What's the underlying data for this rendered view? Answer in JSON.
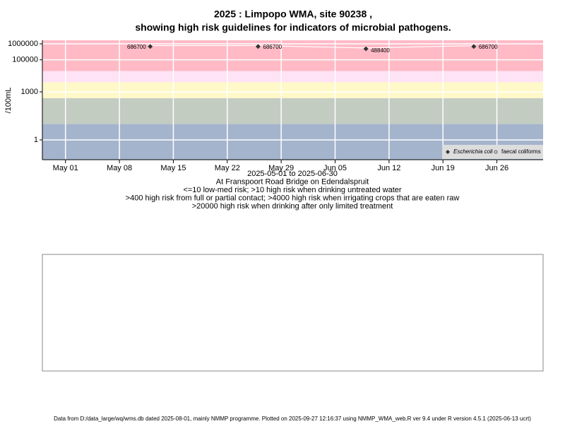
{
  "chart_data": {
    "type": "scatter",
    "title": "2025 : Limpopo WMA, site 90238 ,",
    "subtitle": "showing high risk guidelines for indicators of microbial pathogens.",
    "y_label": "/100mL",
    "notes": [
      "2025-05-01 to 2025-06-30",
      "At Franspoort Road Bridge on Edendalspruit",
      "<=10 low-med risk; >10 high risk when drinking untreated water",
      ">400 high risk from full or partial contact; >4000 high risk when irrigating crops that are eaten raw",
      ">20000 high risk when drinking after only limited treatment"
    ],
    "x": [
      "May 12",
      "May 26",
      "Jun 09",
      "Jun 23"
    ],
    "series": [
      {
        "name": "Escherichia coli",
        "color": "#333333",
        "values": [
          686700,
          686700,
          488400,
          686700
        ]
      },
      {
        "name": "faecal coliforms",
        "color": "#ffffff",
        "values": [
          770000,
          770000,
          550000,
          770000
        ]
      }
    ],
    "xlim": [
      "Apr 28",
      "Jul 02"
    ],
    "xticks": [
      "May 01",
      "May 08",
      "May 15",
      "May 22",
      "May 29",
      "Jun 05",
      "Jun 12",
      "Jun 19",
      "Jun 26"
    ],
    "ylim": [
      0.058,
      1660000
    ],
    "log_y": true,
    "yticks": [
      1,
      1000,
      100000,
      1000000
    ],
    "thresholds": [
      10,
      400,
      4000,
      20000
    ],
    "band_colors": [
      "#a5b4cd",
      "#c3ccc1",
      "#fff8c9",
      "#fde3f5",
      "#ffbac6"
    ],
    "grid": true,
    "legend": "bottom-right"
  },
  "footer": "Data from D:/data_large/wq/wms.db dated 2025-08-01, mainly NMMP programme. Plotted on 2025-09-27 12:16:37 using NMMP_WMA_web.R ver 9.4 under R version 4.5.1 (2025-06-13 ucrt)"
}
